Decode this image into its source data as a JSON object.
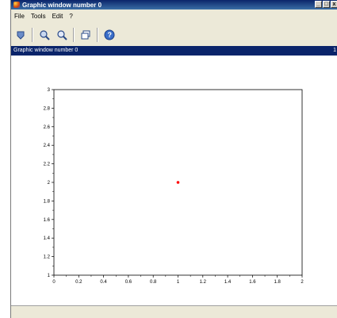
{
  "window": {
    "title": "Graphic window number 0",
    "controls": {
      "minimize": "_",
      "maximize": "□",
      "close": "x"
    }
  },
  "menu": {
    "items": [
      "File",
      "Tools",
      "Edit",
      "?"
    ]
  },
  "toolbar": {
    "buttons": [
      {
        "name": "rotate-icon"
      },
      {
        "name": "zoom-in-icon"
      },
      {
        "name": "zoom-out-icon"
      },
      {
        "name": "new-window-icon"
      },
      {
        "name": "help-icon"
      }
    ]
  },
  "figure": {
    "title": "Graphic window number 0",
    "corner": "1"
  },
  "chart_data": {
    "type": "scatter",
    "xlim": [
      0,
      2
    ],
    "ylim": [
      1,
      3
    ],
    "x_ticks": [
      "0",
      "0.2",
      "0.4",
      "0.6",
      "0.8",
      "1",
      "1.2",
      "1.4",
      "1.6",
      "1.8",
      "2"
    ],
    "y_ticks": [
      "1",
      "1.2",
      "1.4",
      "1.6",
      "1.8",
      "2",
      "2.2",
      "2.4",
      "2.6",
      "2.8",
      "3"
    ],
    "points": [
      {
        "x": 1,
        "y": 2,
        "color": "#ff0000"
      }
    ],
    "grid": false
  }
}
